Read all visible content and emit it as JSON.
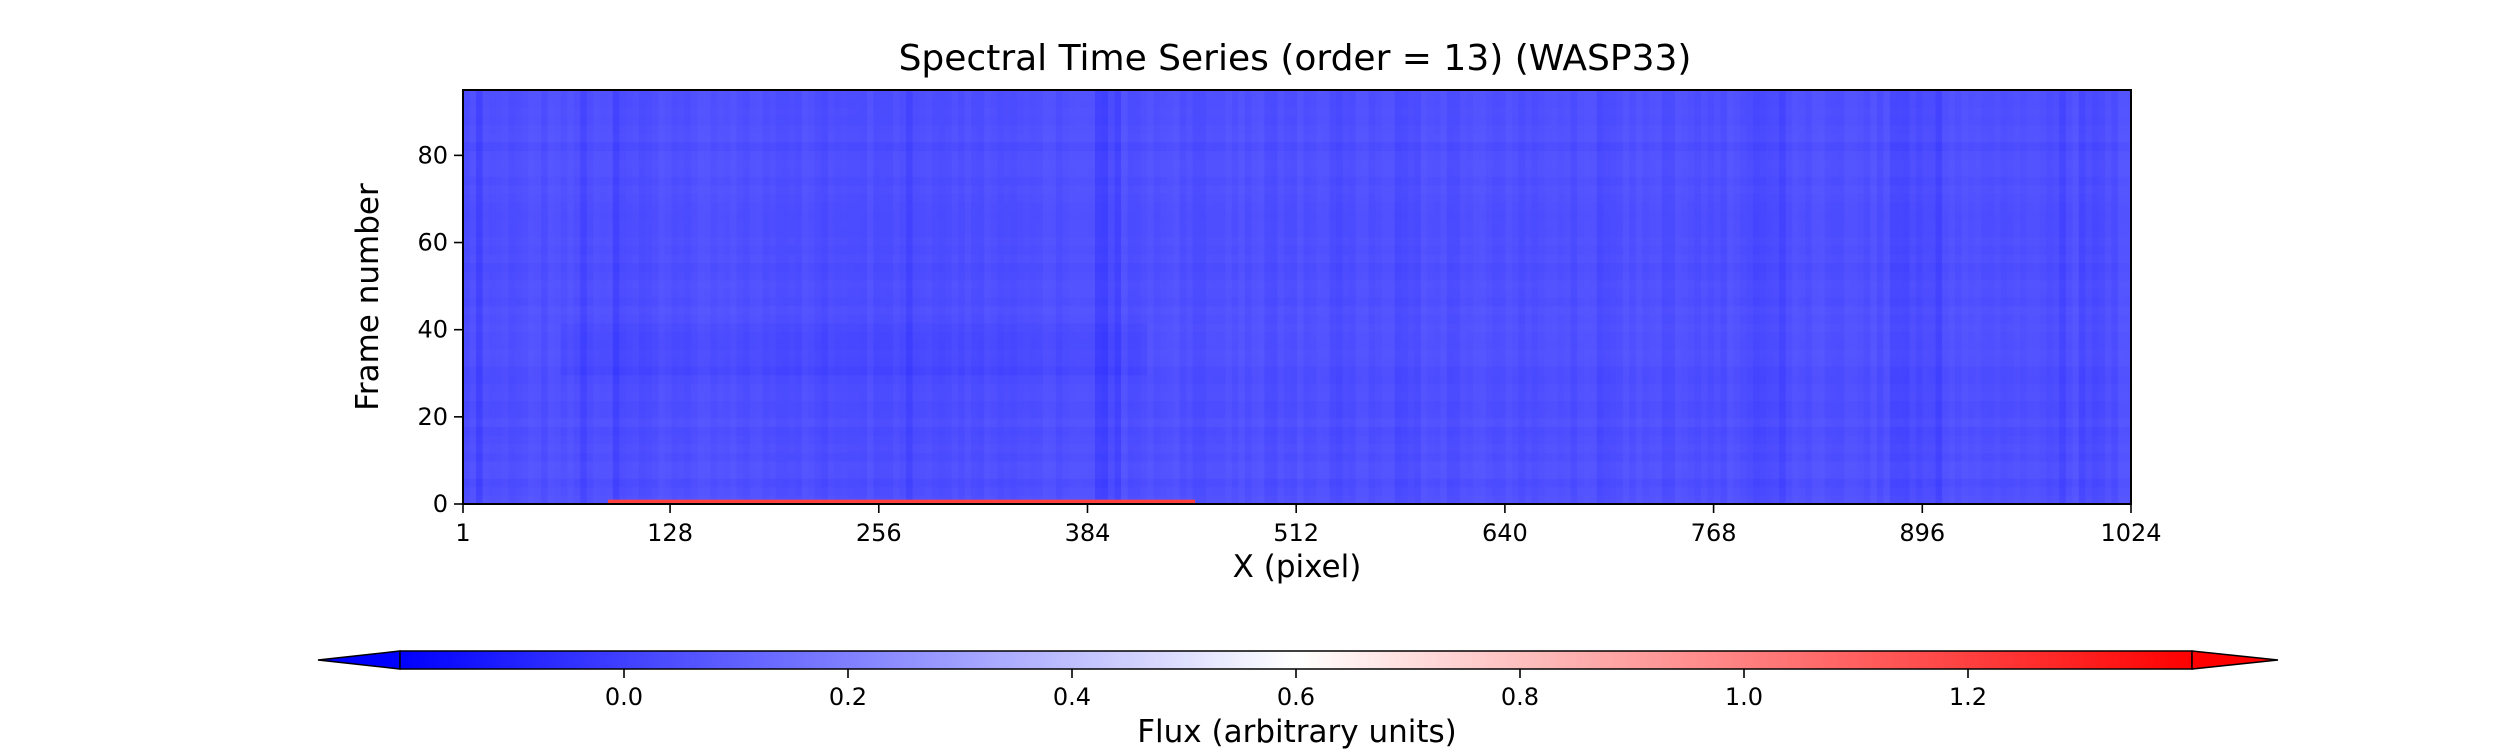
{
  "chart_data": {
    "type": "heatmap",
    "title": "Spectral Time Series (order = 13) (WASP33)",
    "xlabel": "X (pixel)",
    "ylabel": "Frame number",
    "xlim": [
      1,
      1024
    ],
    "ylim": [
      0,
      95
    ],
    "x_ticks": [
      1,
      128,
      256,
      384,
      512,
      640,
      768,
      896,
      1024
    ],
    "y_ticks": [
      0,
      20,
      40,
      60,
      80
    ],
    "colorbar": {
      "label": "Flux (arbitrary units)",
      "vmin": -0.2,
      "vmax": 1.4,
      "ticks": [
        0.0,
        0.2,
        0.4,
        0.6,
        0.8,
        1.0,
        1.2
      ],
      "tick_labels": [
        "0.0",
        "0.2",
        "0.4",
        "0.6",
        "0.8",
        "1.0",
        "1.2"
      ],
      "extend": "both",
      "colormap": "bwr",
      "orientation": "horizontal"
    },
    "background_level": 0.05,
    "absorption_lines_x": [
      10,
      75,
      95,
      222,
      275,
      390,
      395,
      402,
      540,
      575,
      585,
      700,
      792,
      800,
      810,
      880,
      885,
      895,
      905,
      983,
      995,
      1003
    ],
    "bright_band": {
      "x_range": [
        90,
        450
      ],
      "frames": [
        0,
        1
      ],
      "flux": 1.2
    },
    "grid": false
  },
  "colors": {
    "low": "#0000ff",
    "mid": "#ffffff",
    "high": "#ff0000"
  }
}
